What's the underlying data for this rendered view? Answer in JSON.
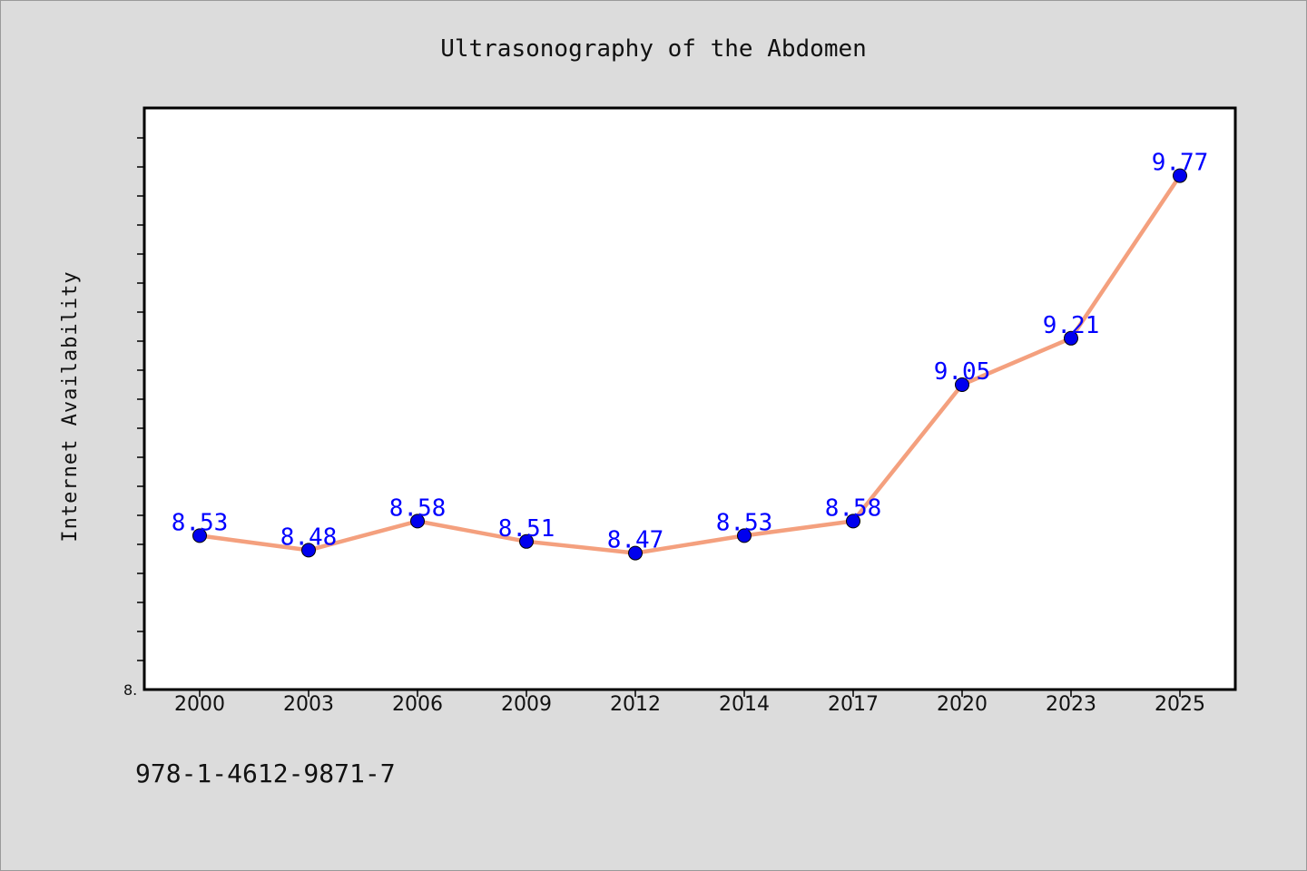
{
  "chart_data": {
    "type": "line",
    "title": "Ultrasonography of the Abdomen",
    "xlabel": "",
    "ylabel": "Internet Availability",
    "categories": [
      "2000",
      "2003",
      "2006",
      "2009",
      "2012",
      "2014",
      "2017",
      "2020",
      "2023",
      "2025"
    ],
    "series": [
      {
        "values": [
          8.53,
          8.48,
          8.58,
          8.51,
          8.47,
          8.53,
          8.58,
          9.05,
          9.21,
          9.77
        ],
        "data_labels": [
          "8.53",
          "8.48",
          "8.58",
          "8.51",
          "8.47",
          "8.53",
          "8.58",
          "9.05",
          "9.21",
          "9.77"
        ]
      }
    ],
    "ylim": [
      8.0,
      10.0
    ],
    "ytick_label": "8.",
    "grid": false,
    "colors": {
      "line": "#f4a07e",
      "marker": "#0000ee",
      "labels": "#0000ff"
    }
  },
  "footer": {
    "text": "978-1-4612-9871-7"
  }
}
